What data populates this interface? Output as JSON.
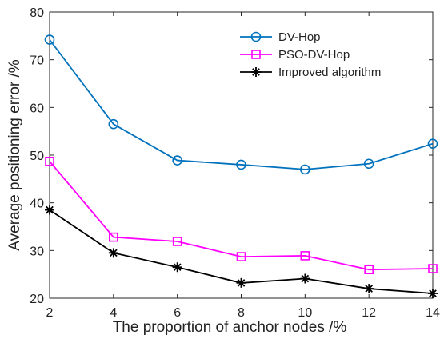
{
  "chart_data": {
    "type": "line",
    "xlabel": "The proportion of anchor nodes /%",
    "ylabel": "Average positioning error /%",
    "x": [
      2,
      4,
      6,
      8,
      10,
      12,
      14
    ],
    "xlim": [
      2,
      14
    ],
    "ylim": [
      20,
      80
    ],
    "xticks": [
      "2",
      "4",
      "6",
      "8",
      "10",
      "12",
      "14"
    ],
    "yticks": [
      "20",
      "30",
      "40",
      "50",
      "60",
      "70",
      "80"
    ],
    "grid": false,
    "legend_position": "top-right",
    "series": [
      {
        "name": "DV-Hop",
        "values": [
          74.2,
          56.5,
          48.9,
          48.0,
          47.0,
          48.2,
          52.4
        ],
        "color": "#0072BD",
        "marker": "circle"
      },
      {
        "name": "PSO-DV-Hop",
        "values": [
          48.7,
          32.8,
          31.9,
          28.7,
          28.9,
          26.0,
          26.2
        ],
        "color": "#FF00FF",
        "marker": "square"
      },
      {
        "name": "Improved algorithm",
        "values": [
          38.5,
          29.5,
          26.5,
          23.2,
          24.1,
          22.0,
          21.0
        ],
        "color": "#000000",
        "marker": "asterisk"
      }
    ]
  }
}
